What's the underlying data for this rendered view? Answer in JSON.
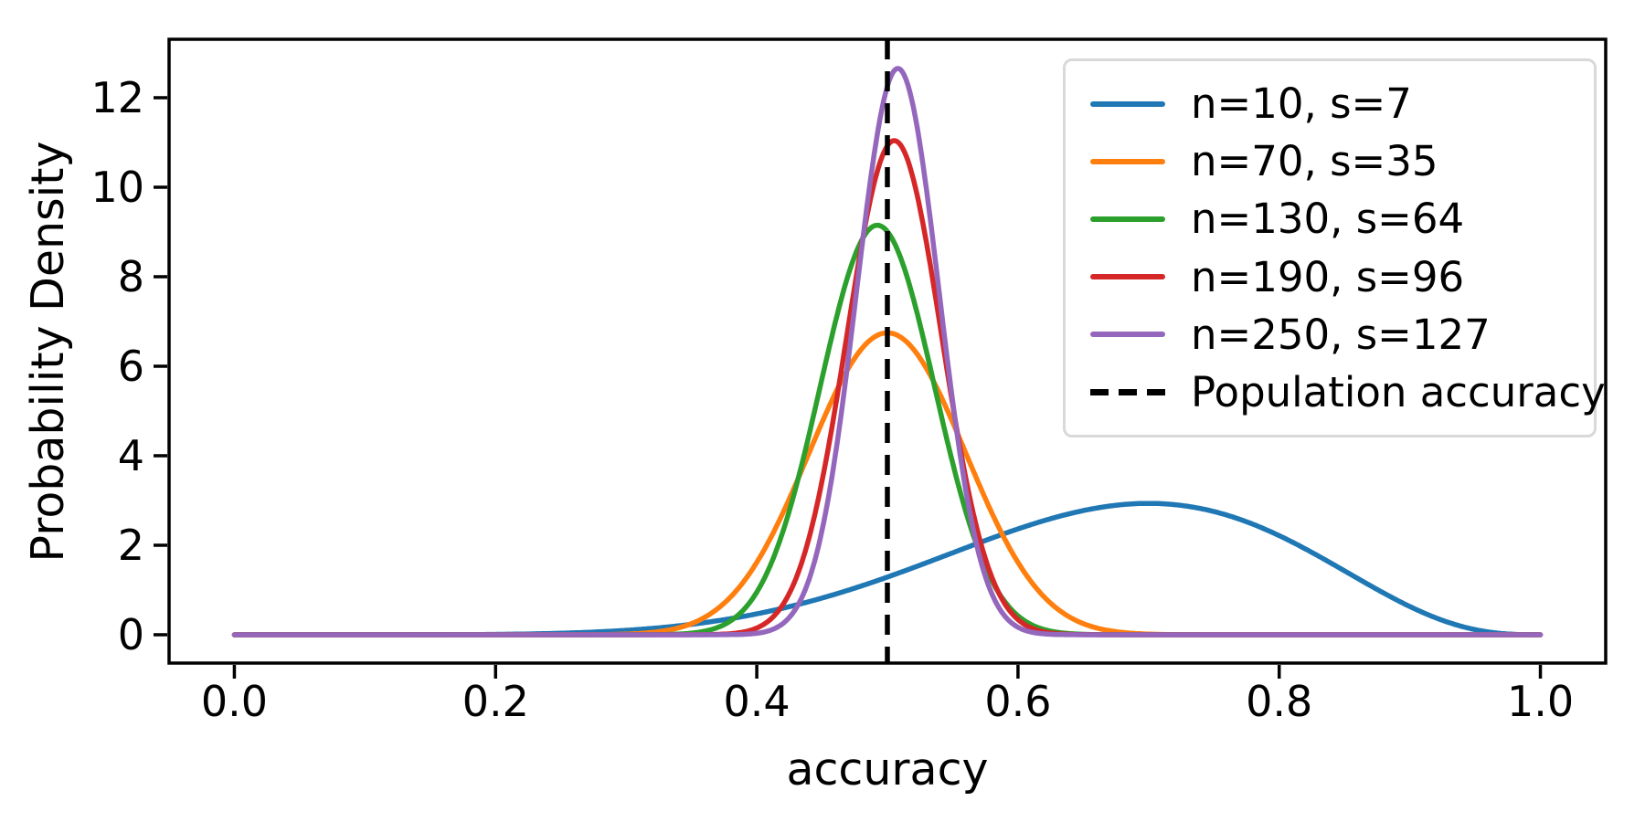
{
  "figure": {
    "background": "#ffffff",
    "text_color": "#000000",
    "spine_color": "#000000"
  },
  "chart_data": {
    "type": "line",
    "title": "",
    "xlabel": "accuracy",
    "ylabel": "Probability Density",
    "xlim": [
      -0.05,
      1.05
    ],
    "ylim": [
      -0.633,
      13.306
    ],
    "grid": false,
    "legend_position": "upper right",
    "xticks": {
      "values": [
        0.0,
        0.2,
        0.4,
        0.6,
        0.8,
        1.0
      ],
      "labels": [
        "0.0",
        "0.2",
        "0.4",
        "0.6",
        "0.8",
        "1.0"
      ]
    },
    "yticks": {
      "values": [
        0,
        2,
        4,
        6,
        8,
        10,
        12
      ],
      "labels": [
        "0",
        "2",
        "4",
        "6",
        "8",
        "10",
        "12"
      ]
    },
    "series": [
      {
        "label": "n=10, s=7",
        "n": 10,
        "s": 7,
        "color": "#1f77b4",
        "distribution": "beta_posterior",
        "alpha": 8,
        "beta": 4,
        "peak_x": 0.7,
        "peak_y": 2.94,
        "x_range": [
          0,
          1
        ]
      },
      {
        "label": "n=70, s=35",
        "n": 70,
        "s": 35,
        "color": "#ff7f0e",
        "distribution": "beta_posterior",
        "alpha": 36,
        "beta": 36,
        "peak_x": 0.5,
        "peak_y": 6.77,
        "x_range": [
          0,
          1
        ]
      },
      {
        "label": "n=130, s=64",
        "n": 130,
        "s": 64,
        "color": "#2ca02c",
        "distribution": "beta_posterior",
        "alpha": 65,
        "beta": 67,
        "peak_x": 0.492,
        "peak_y": 9.18,
        "x_range": [
          0,
          1
        ]
      },
      {
        "label": "n=190, s=96",
        "n": 190,
        "s": 96,
        "color": "#d62728",
        "distribution": "beta_posterior",
        "alpha": 97,
        "beta": 95,
        "peak_x": 0.505,
        "peak_y": 11.07,
        "x_range": [
          0,
          1
        ]
      },
      {
        "label": "n=250, s=127",
        "n": 250,
        "s": 127,
        "color": "#9467bd",
        "distribution": "beta_posterior",
        "alpha": 128,
        "beta": 124,
        "peak_x": 0.508,
        "peak_y": 12.67,
        "x_range": [
          0,
          1
        ]
      }
    ],
    "vline": {
      "label": "Population accuracy",
      "x": 0.5,
      "color": "#000000",
      "linestyle": "dashed"
    }
  }
}
